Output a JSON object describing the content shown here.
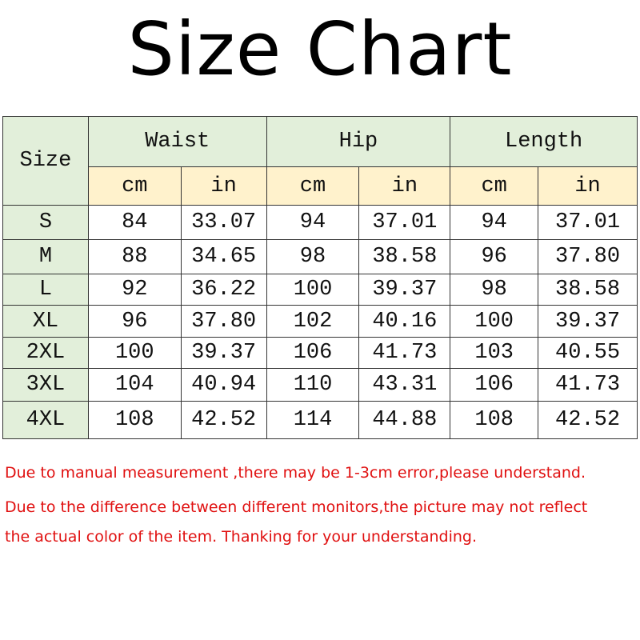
{
  "title": "Size Chart",
  "table": {
    "size_header": "Size",
    "groups": [
      "Waist",
      "Hip",
      "Length"
    ],
    "units": [
      "cm",
      "in",
      "cm",
      "in",
      "cm",
      "in"
    ],
    "rows": [
      [
        "S",
        "84",
        "33.07",
        "94",
        "37.01",
        "94",
        "37.01"
      ],
      [
        "M",
        "88",
        "34.65",
        "98",
        "38.58",
        "96",
        "37.80"
      ],
      [
        "L",
        "92",
        "36.22",
        "100",
        "39.37",
        "98",
        "38.58"
      ],
      [
        "XL",
        "96",
        "37.80",
        "102",
        "40.16",
        "100",
        "39.37"
      ],
      [
        "2XL",
        "100",
        "39.37",
        "106",
        "41.73",
        "103",
        "40.55"
      ],
      [
        "3XL",
        "104",
        "40.94",
        "110",
        "43.31",
        "106",
        "41.73"
      ],
      [
        "4XL",
        "108",
        "42.52",
        "114",
        "44.88",
        "108",
        "42.52"
      ]
    ]
  },
  "notes": [
    "Due to manual measurement ,there may be 1-3cm error,please understand.",
    "Due to the difference between different monitors,the picture may not reflect",
    "the actual color of the item. Thanking for your understanding."
  ],
  "colors": {
    "header_green": "#e2efda",
    "header_yellow": "#fff2cc",
    "note_red": "#e01010"
  }
}
